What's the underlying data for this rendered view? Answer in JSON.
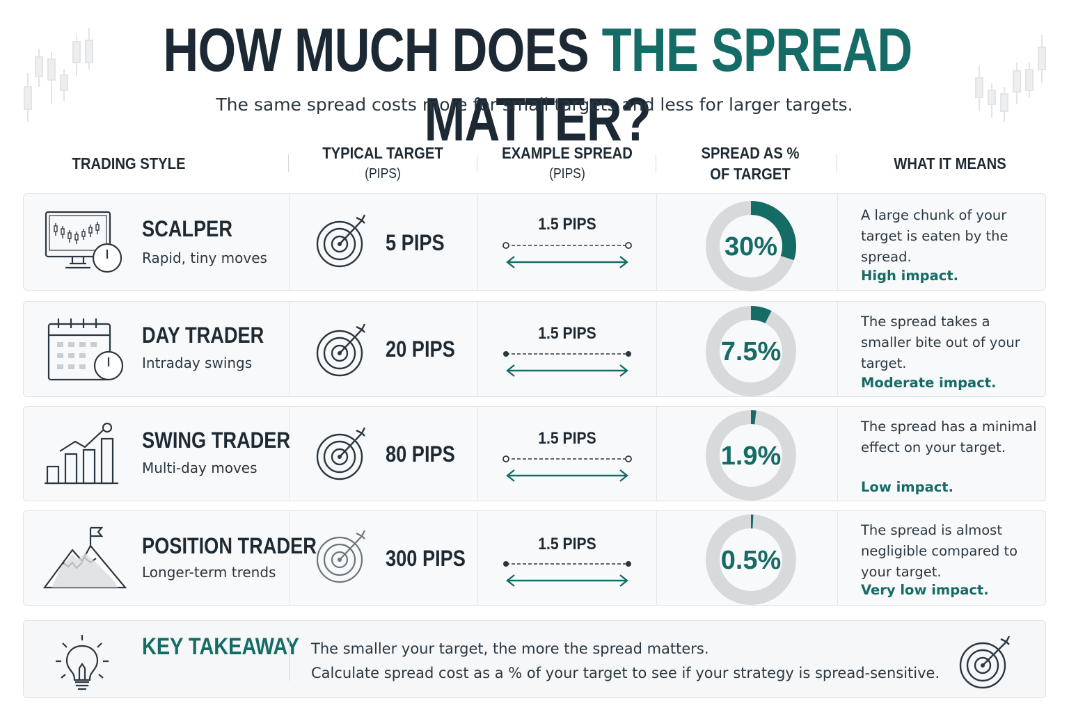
{
  "title": {
    "prefix": "HOW MUCH DOES ",
    "accent": "THE SPREAD",
    "suffix": " MATTER?"
  },
  "subtitle": "The same spread costs more for small targets and less for larger targets.",
  "columns": {
    "style": "TRADING STYLE",
    "target": "TYPICAL TARGET",
    "target_sub": "(PIPS)",
    "spread": "EXAMPLE SPREAD",
    "spread_sub": "(PIPS)",
    "pct_1": "SPREAD AS %",
    "pct_2": "OF TARGET",
    "means": "WHAT IT MEANS"
  },
  "colors": {
    "accent": "#156b66",
    "ring": "#d7d9da",
    "text": "#1e2a33"
  },
  "rows": [
    {
      "icon": "monitor-chart-clock-icon",
      "name": "SCALPER",
      "desc": "Rapid, tiny moves",
      "target": "5 PIPS",
      "spread": "1.5 PIPS",
      "percent_label": "30%",
      "percent_value": 30,
      "meaning": "A large chunk of your target is eaten by the spread.",
      "impact": "High impact."
    },
    {
      "icon": "calendar-clock-icon",
      "name": "DAY TRADER",
      "desc": "Intraday swings",
      "target": "20 PIPS",
      "spread": "1.5 PIPS",
      "percent_label": "7.5%",
      "percent_value": 7.5,
      "meaning": "The spread takes a smaller bite out of your target.",
      "impact": "Moderate impact."
    },
    {
      "icon": "bar-chart-uptrend-icon",
      "name": "SWING TRADER",
      "desc": "Multi-day moves",
      "target": "80 PIPS",
      "spread": "1.5 PIPS",
      "percent_label": "1.9%",
      "percent_value": 1.9,
      "meaning": "The spread has a minimal effect on your target.",
      "impact": "Low impact."
    },
    {
      "icon": "mountain-flag-icon",
      "name": "POSITION TRADER",
      "desc": "Longer-term trends",
      "target": "300 PIPS",
      "spread": "1.5 PIPS",
      "percent_label": "0.5%",
      "percent_value": 0.5,
      "meaning": "The spread is almost negligible compared to your target.",
      "impact": "Very low impact."
    }
  ],
  "takeaway": {
    "title": "KEY TAKEAWAY",
    "line1": "The smaller your target, the more the spread matters.",
    "line2": "Calculate spread cost as a % of your target to see if your strategy is spread-sensitive."
  }
}
